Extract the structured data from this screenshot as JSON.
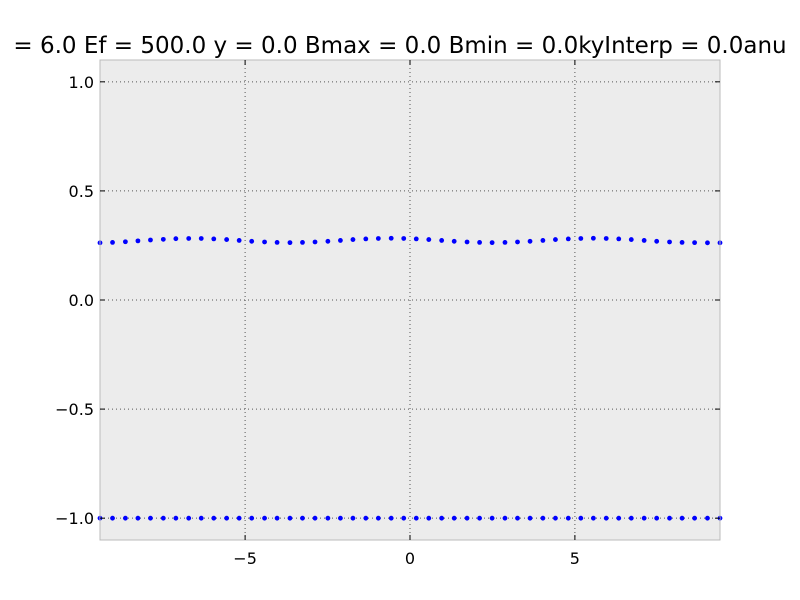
{
  "chart_data": {
    "type": "scatter",
    "title": "= 6.0 Ef = 500.0 y = 0.0 Bmax = 0.0 Bmin = 0.0kyInterp = 0.0anu",
    "xlabel": "",
    "ylabel": "",
    "xlim": [
      -9.4,
      9.4
    ],
    "ylim": [
      -1.1,
      1.1
    ],
    "x_ticks": [
      -5,
      0,
      5
    ],
    "x_tick_labels": [
      "−5",
      "0",
      "5"
    ],
    "y_ticks": [
      -1.0,
      -0.5,
      0.0,
      0.5,
      1.0
    ],
    "y_tick_labels": [
      "−1.0",
      "−0.5",
      "0.0",
      "0.5",
      "1.0"
    ],
    "grid": true,
    "legend": "none",
    "marker": "dot",
    "colors": {
      "series": "#0000ff",
      "plot_background": "#ececec",
      "grid": "#555555",
      "frame": "#bbbbbb"
    },
    "series": [
      {
        "x": [
          -9.4,
          -9.02,
          -8.63,
          -8.25,
          -7.87,
          -7.48,
          -7.1,
          -6.71,
          -6.33,
          -5.95,
          -5.56,
          -5.18,
          -4.8,
          -4.41,
          -4.03,
          -3.64,
          -3.26,
          -2.88,
          -2.49,
          -2.11,
          -1.73,
          -1.34,
          -0.96,
          -0.57,
          -0.19,
          0.19,
          0.57,
          0.96,
          1.34,
          1.73,
          2.11,
          2.49,
          2.88,
          3.26,
          3.64,
          4.03,
          4.41,
          4.8,
          5.18,
          5.56,
          5.95,
          6.33,
          6.71,
          7.1,
          7.48,
          7.87,
          8.25,
          8.63,
          9.02,
          9.4
        ],
        "y": [
          0.262,
          0.264,
          0.267,
          0.271,
          0.275,
          0.278,
          0.281,
          0.282,
          0.282,
          0.28,
          0.277,
          0.273,
          0.269,
          0.266,
          0.264,
          0.263,
          0.264,
          0.266,
          0.269,
          0.273,
          0.277,
          0.28,
          0.282,
          0.283,
          0.282,
          0.28,
          0.277,
          0.273,
          0.269,
          0.266,
          0.264,
          0.263,
          0.264,
          0.266,
          0.269,
          0.273,
          0.277,
          0.28,
          0.282,
          0.283,
          0.282,
          0.28,
          0.277,
          0.273,
          0.269,
          0.266,
          0.264,
          0.263,
          0.262,
          0.262
        ]
      },
      {
        "x": [
          -9.4,
          -9.02,
          -8.63,
          -8.25,
          -7.87,
          -7.48,
          -7.1,
          -6.71,
          -6.33,
          -5.95,
          -5.56,
          -5.18,
          -4.8,
          -4.41,
          -4.03,
          -3.64,
          -3.26,
          -2.88,
          -2.49,
          -2.11,
          -1.73,
          -1.34,
          -0.96,
          -0.57,
          -0.19,
          0.19,
          0.57,
          0.96,
          1.34,
          1.73,
          2.11,
          2.49,
          2.88,
          3.26,
          3.64,
          4.03,
          4.41,
          4.8,
          5.18,
          5.56,
          5.95,
          6.33,
          6.71,
          7.1,
          7.48,
          7.87,
          8.25,
          8.63,
          9.02,
          9.4
        ],
        "y": [
          -1.0,
          -1.0,
          -1.0,
          -1.0,
          -1.0,
          -1.0,
          -1.0,
          -1.0,
          -1.0,
          -1.0,
          -1.0,
          -1.0,
          -1.0,
          -1.0,
          -1.0,
          -1.0,
          -1.0,
          -1.0,
          -1.0,
          -1.0,
          -1.0,
          -1.0,
          -1.0,
          -1.0,
          -1.0,
          -1.0,
          -1.0,
          -1.0,
          -1.0,
          -1.0,
          -1.0,
          -1.0,
          -1.0,
          -1.0,
          -1.0,
          -1.0,
          -1.0,
          -1.0,
          -1.0,
          -1.0,
          -1.0,
          -1.0,
          -1.0,
          -1.0,
          -1.0,
          -1.0,
          -1.0,
          -1.0,
          -1.0,
          -1.0
        ]
      }
    ]
  }
}
